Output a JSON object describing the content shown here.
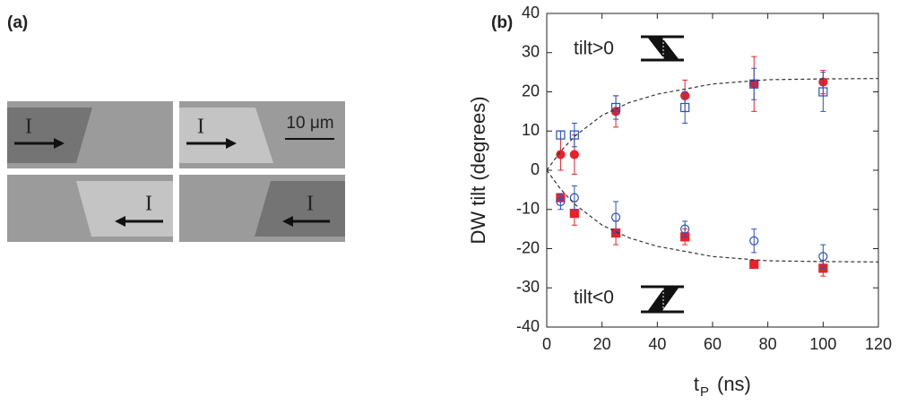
{
  "panel_a": {
    "label": "(a)",
    "current_labels": [
      "I",
      "I",
      "I",
      "I"
    ],
    "scale_bar": "10 μm"
  },
  "chart_data": {
    "type": "scatter",
    "label": "(b)",
    "ylabel": "DW tilt (degrees)",
    "xlabel_main": "t",
    "xlabel_sub": "P",
    "xlabel_unit": "(ns)",
    "annotations": [
      "tilt>0",
      "tilt<0"
    ],
    "xlim": [
      0,
      120
    ],
    "xticks": [
      0,
      20,
      40,
      60,
      80,
      100,
      120
    ],
    "ylim": [
      -40,
      40
    ],
    "yticks": [
      -40,
      -30,
      -20,
      -10,
      0,
      10,
      20,
      30,
      40
    ],
    "series": [
      {
        "color": "#e8212b",
        "marker": "circle",
        "filled": true,
        "x": [
          5,
          10,
          25,
          50,
          75,
          100
        ],
        "values": [
          4,
          4,
          15,
          19,
          22,
          22.5
        ],
        "errors": [
          4,
          5,
          4,
          4,
          7,
          3
        ]
      },
      {
        "color": "#2a52be",
        "marker": "square",
        "filled": false,
        "x": [
          5,
          10,
          25,
          50,
          75,
          100
        ],
        "values": [
          9,
          9,
          16,
          16,
          22,
          20
        ],
        "errors": [
          1,
          3,
          3,
          4,
          4,
          5
        ]
      },
      {
        "color": "#e8212b",
        "marker": "square",
        "filled": true,
        "x": [
          5,
          10,
          25,
          50,
          75,
          100
        ],
        "values": [
          -7,
          -11,
          -16,
          -17,
          -24,
          -25
        ],
        "errors": [
          1,
          3,
          3,
          2,
          1,
          2
        ]
      },
      {
        "color": "#2a52be",
        "marker": "circle",
        "filled": false,
        "x": [
          5,
          10,
          25,
          50,
          75,
          100
        ],
        "values": [
          -8,
          -7,
          -12,
          -15,
          -18,
          -22
        ],
        "errors": [
          2,
          3,
          4,
          2,
          3,
          3
        ]
      },
      {
        "color": "#333333",
        "marker": "line",
        "linestyle": "dashed",
        "x": [
          0,
          5,
          10,
          20,
          30,
          40,
          60,
          80,
          100,
          120
        ],
        "values": [
          0,
          4.8,
          8.6,
          14,
          17.3,
          19.4,
          22,
          23.1,
          23.3,
          23.4
        ]
      },
      {
        "color": "#333333",
        "marker": "line",
        "linestyle": "dashed",
        "x": [
          0,
          5,
          10,
          20,
          30,
          40,
          60,
          80,
          100,
          120
        ],
        "values": [
          0,
          -4.8,
          -8.6,
          -14,
          -17.3,
          -19.4,
          -22,
          -23.1,
          -23.3,
          -23.4
        ]
      }
    ]
  }
}
